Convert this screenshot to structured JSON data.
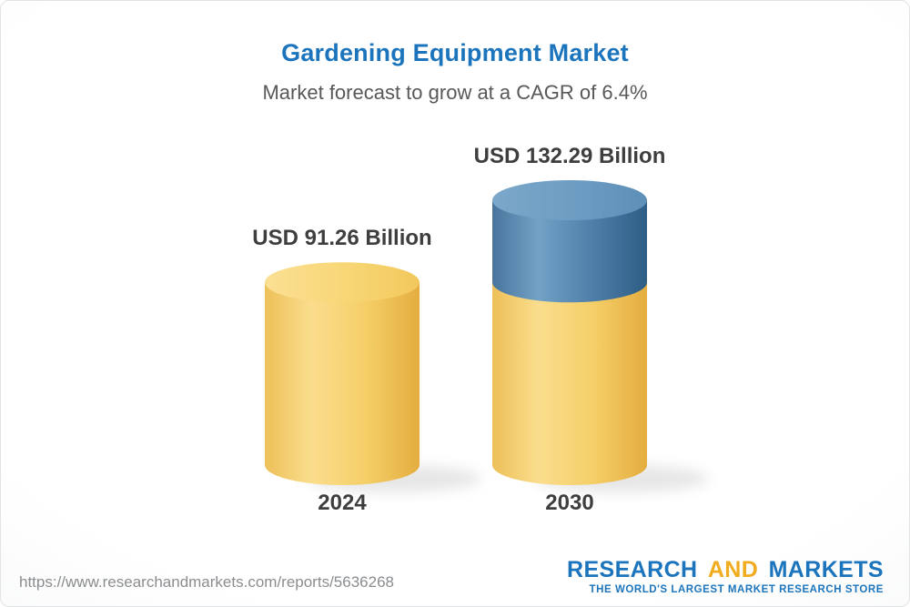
{
  "header": {
    "title": "Gardening Equipment Market",
    "subtitle": "Market forecast to grow at a CAGR of 6.4%"
  },
  "chart_data": {
    "type": "bar",
    "subtype": "3d-cylinder",
    "title": "Gardening Equipment Market",
    "subtitle": "Market forecast to grow at a CAGR of 6.4%",
    "cagr_percent": 6.4,
    "categories": [
      "2024",
      "2030"
    ],
    "values": [
      91.26,
      132.29
    ],
    "value_labels": [
      "USD 91.26 Billion",
      "USD 132.29 Billion"
    ],
    "unit": "USD Billion",
    "ylim": [
      0,
      140
    ],
    "grid": false,
    "legend": "none",
    "colors": {
      "bar_base_yellow": "#f5cf68",
      "bar_growth_blue": "#4e7fa8",
      "title_blue": "#1c75bc",
      "label_dark": "#3e3e40"
    },
    "annotations": [
      "2030 cylinder is yellow up to the 2024 level with the incremental growth shown in blue on top"
    ]
  },
  "footer": {
    "url": "https://www.researchandmarkets.com/reports/5636268",
    "logo": {
      "word1": "RESEARCH",
      "word2": "AND",
      "word3": "MARKETS",
      "tagline": "THE WORLD'S LARGEST MARKET RESEARCH STORE",
      "blue": "#1c75bc",
      "gold": "#f0ac1e"
    }
  }
}
